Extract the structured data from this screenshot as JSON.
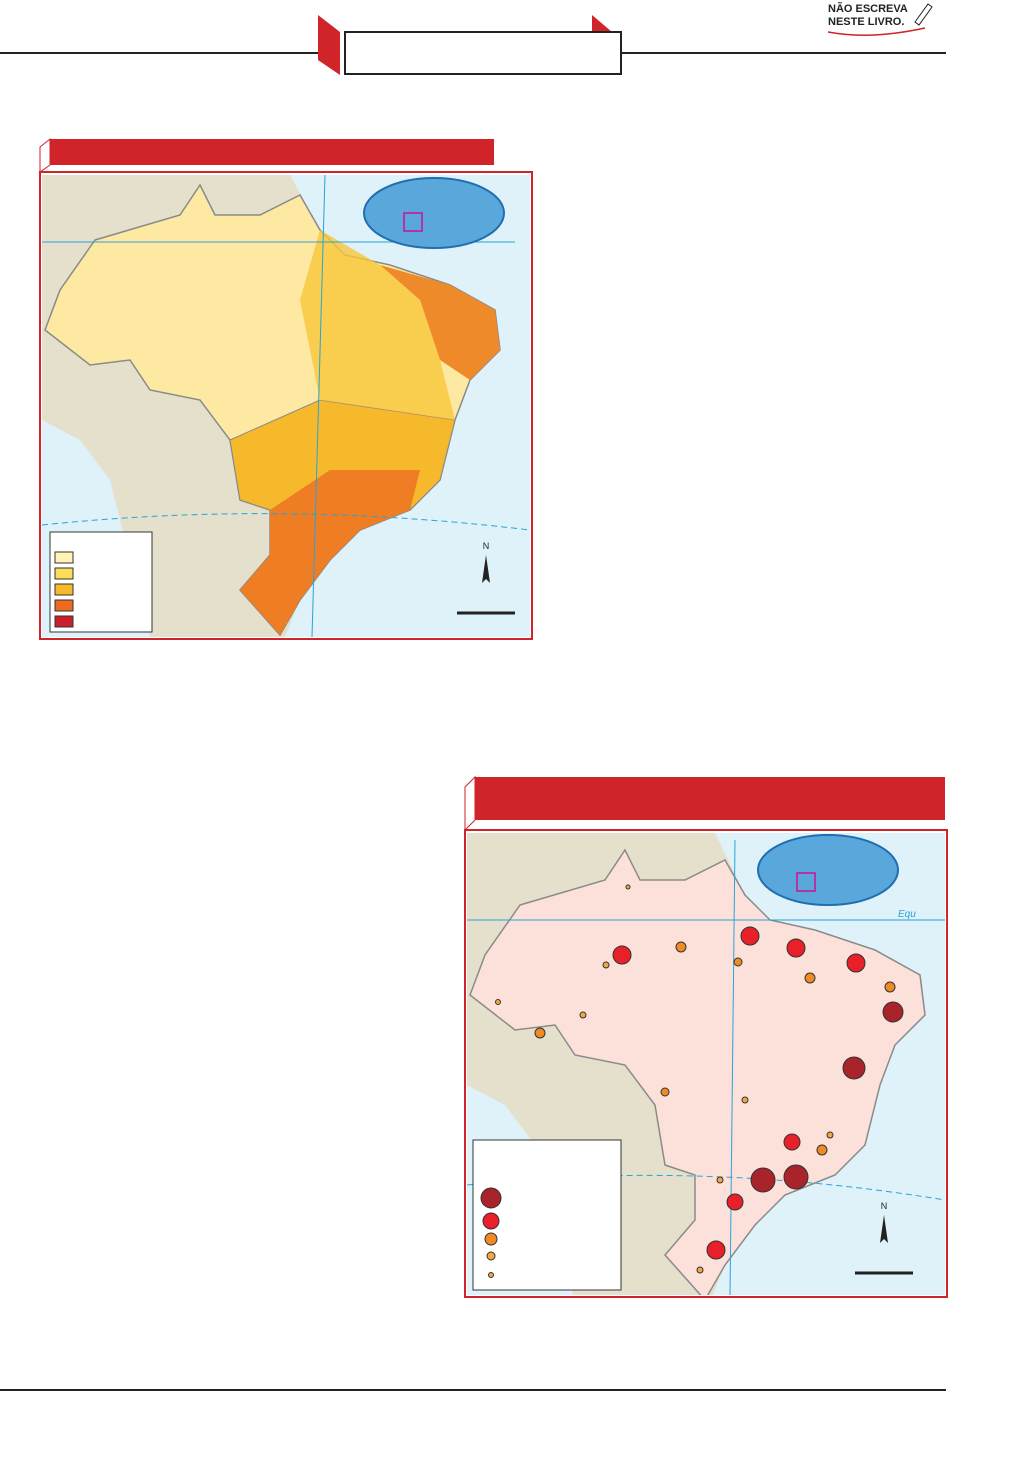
{
  "badge": {
    "line1": "NÃO ESCREVA",
    "line2": "NESTE LIVRO."
  },
  "map1": {
    "north_label": "N"
  },
  "map2": {
    "north_label": "N",
    "equator_label": "Equ"
  }
}
